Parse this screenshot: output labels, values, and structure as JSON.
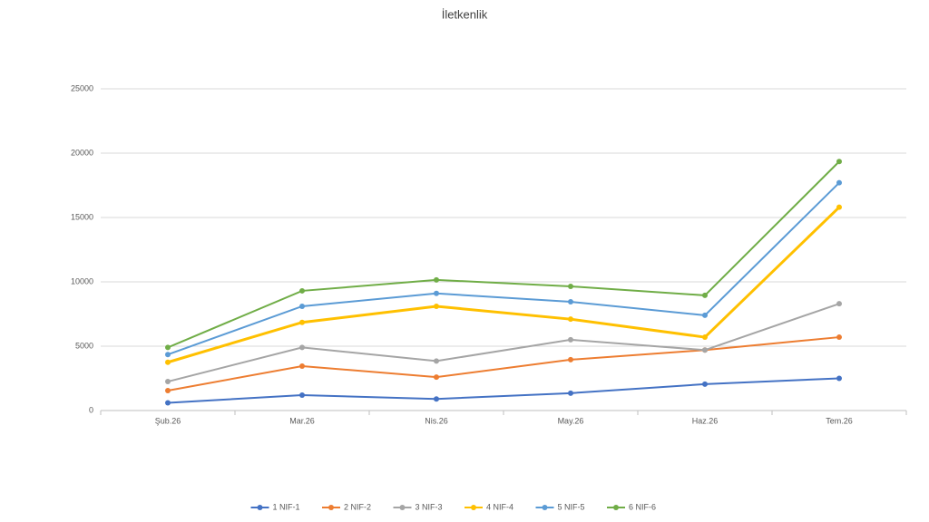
{
  "chart_data": {
    "type": "line",
    "title": "İletkenlik",
    "categories": [
      "Şub.26",
      "Mar.26",
      "Nis.26",
      "May.26",
      "Haz.26",
      "Tem.26"
    ],
    "series": [
      {
        "name": "1 NIF-1",
        "color": "#4472c4",
        "values": [
          600,
          1200,
          900,
          1350,
          2050,
          2500
        ]
      },
      {
        "name": "2 NIF-2",
        "color": "#ed7d31",
        "values": [
          1550,
          3450,
          2600,
          3950,
          4700,
          5700
        ]
      },
      {
        "name": "3 NIF-3",
        "color": "#a5a5a5",
        "values": [
          2250,
          4900,
          3850,
          5500,
          4700,
          8300
        ]
      },
      {
        "name": "4 NIF-4",
        "color": "#ffc000",
        "values": [
          3750,
          6850,
          8100,
          7100,
          5700,
          15800
        ]
      },
      {
        "name": "5 NIF-5",
        "color": "#5b9bd5",
        "values": [
          4350,
          8100,
          9100,
          8450,
          7400,
          17700
        ]
      },
      {
        "name": "6 NIF-6",
        "color": "#70ad47",
        "values": [
          4900,
          9300,
          10150,
          9650,
          8950,
          19350
        ]
      }
    ],
    "ylim": [
      0,
      25000
    ],
    "yticks": [
      0,
      5000,
      10000,
      15000,
      20000,
      25000
    ],
    "grid": true,
    "legend": "bottom"
  }
}
